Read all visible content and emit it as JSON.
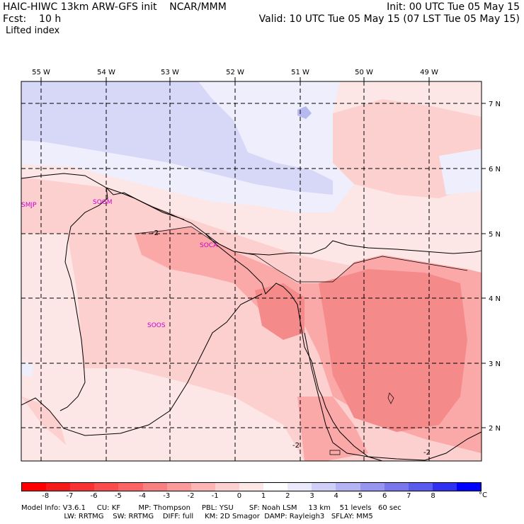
{
  "header": {
    "model_title": "HAIC-HIWC 13km ARW-GFS init    NCAR/MMM",
    "init_time": "Init: 00 UTC Tue 05 May 15",
    "forecast": "Fcst:    10 h",
    "valid_time": "Valid: 10 UTC Tue 05 May 15 (07 LST Tue 05 May 15)",
    "field": "Lifted index"
  },
  "map": {
    "longitude_labels": [
      "55 W",
      "54 W",
      "53 W",
      "52 W",
      "51 W",
      "50 W",
      "49 W"
    ],
    "latitude_labels": [
      "7 N",
      "6 N",
      "5 N",
      "4 N",
      "3 N",
      "2 N"
    ],
    "stations": [
      "SMJP",
      "SOGM",
      "SOCA",
      "SOOS"
    ],
    "contour_labels": [
      "-2",
      "-2",
      "-2"
    ],
    "colors": {
      "neg1": "#fde6e6",
      "neg2": "#fdd0d0",
      "neg3": "#faa8a8",
      "neg4": "#f58a8a",
      "pos1": "#eeeefc",
      "pos2": "#d7d7f8",
      "pos3": "#b8b8f0",
      "station": "#cc00cc"
    }
  },
  "colorbar": {
    "colors": [
      "#ff0000",
      "#f51a1a",
      "#f83232",
      "#fa4c4c",
      "#fb6464",
      "#f88080",
      "#fa9a9a",
      "#fbb5b5",
      "#fdd0d0",
      "#fde6e6",
      "#ffffff",
      "#eaeafc",
      "#cfcff8",
      "#b4b4f4",
      "#9696f0",
      "#7878ec",
      "#5a5aec",
      "#3030f0",
      "#0000ff"
    ],
    "ticks": [
      "-8",
      "-7",
      "-6",
      "-5",
      "-4",
      "-3",
      "-2",
      "-1",
      "0",
      "1",
      "2",
      "3",
      "4",
      "5",
      "6",
      "7",
      "8"
    ],
    "unit": "°C"
  },
  "footer": {
    "line1": "Model Info: V3.6.1     CU: KF        MP: Thompson     PBL: YSU       SF: Noah LSM     13 km    51 levels   60 sec",
    "line2": "                   LW: RRTMG    SW: RRTMG    DIFF: full     KM: 2D Smagor  DAMP: Rayleigh3   SFLAY: MM5"
  }
}
